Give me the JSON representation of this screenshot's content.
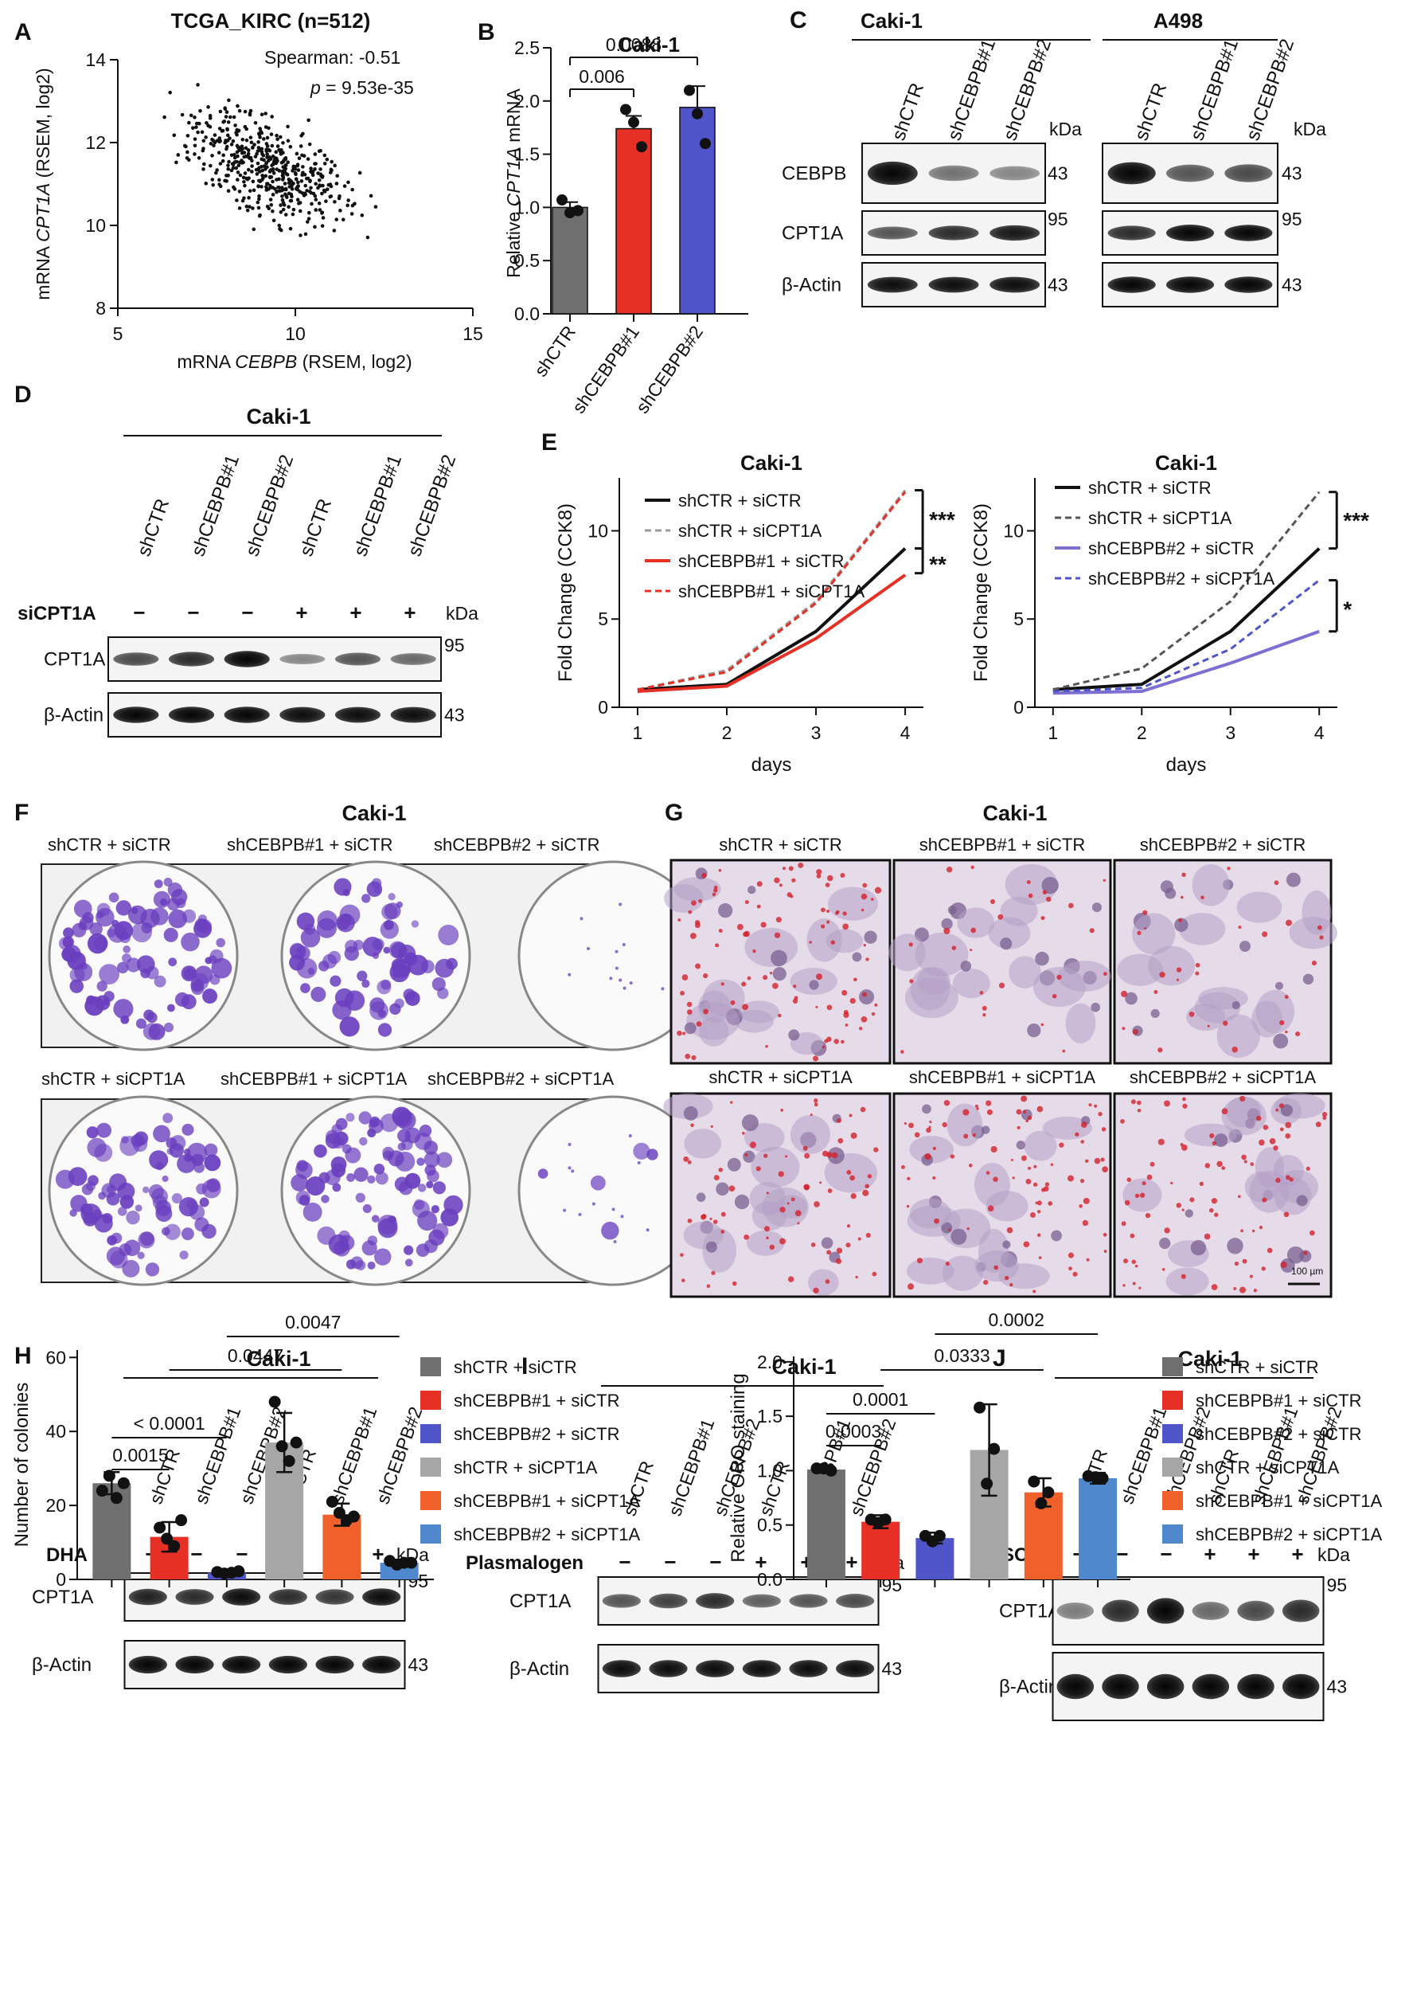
{
  "labels": [
    "A",
    "B",
    "C",
    "D",
    "E",
    "F",
    "G",
    "H",
    "I",
    "J"
  ],
  "panelA": {
    "title": "TCGA_KIRC (n=512)",
    "stat1": "Spearman: -0.51",
    "stat2_p": "p",
    "stat2_rest": " = 9.53e-35",
    "ylabel_pre": "mRNA ",
    "ylabel_gene": "CPT1A",
    "ylabel_post": " (RSEM, log2)",
    "xlabel_pre": "mRNA ",
    "xlabel_gene": "CEBPB",
    "xlabel_post": " (RSEM, log2)",
    "xticks": [
      "5",
      "10",
      "15"
    ],
    "yticks": [
      "8",
      "10",
      "12",
      "14"
    ]
  },
  "panelB": {
    "title": "Caki-1",
    "ylabel_pre": "Relative ",
    "ylabel_gene": "CPT1A",
    "ylabel_post": " mRNA",
    "yticks": [
      "0.0",
      "0.5",
      "1.0",
      "1.5",
      "2.0",
      "2.5"
    ],
    "categories": [
      "shCTR",
      "shCEBPB#1",
      "shCEBPB#2"
    ],
    "p1": "0.006",
    "p2": "0.0088"
  },
  "panelC": {
    "cell1": "Caki-1",
    "cell2": "A498",
    "lanes": [
      "shCTR",
      "shCEBPB#1",
      "shCEBPB#2"
    ],
    "kda": "kDa",
    "rows": [
      "CEBPB",
      "CPT1A",
      "β-Actin"
    ],
    "markers": [
      "43",
      "95",
      "43"
    ]
  },
  "panelD": {
    "cell": "Caki-1",
    "lanes": [
      "shCTR",
      "shCEBPB#1",
      "shCEBPB#2",
      "shCTR",
      "shCEBPB#1",
      "shCEBPB#2"
    ],
    "treat": "siCPT1A",
    "signs": [
      "−",
      "−",
      "−",
      "+",
      "+",
      "+"
    ],
    "kda": "kDa",
    "rows": [
      "CPT1A",
      "β-Actin"
    ],
    "markers": [
      "95",
      "43"
    ]
  },
  "panelE": {
    "ylabel": "Fold Change (CCK8)",
    "xlabel": "days",
    "xticks": [
      "1",
      "2",
      "3",
      "4"
    ],
    "yticks": [
      "0",
      "5",
      "10"
    ],
    "left": {
      "title": "Caki-1",
      "legend": [
        "shCTR + siCTR",
        "shCTR + siCPT1A",
        "shCEBPB#1 + siCTR",
        "shCEBPB#1 + siCPT1A"
      ],
      "sig1": "***",
      "sig2": "**"
    },
    "right": {
      "title": "Caki-1",
      "legend": [
        "shCTR + siCTR",
        "shCTR + siCPT1A",
        "shCEBPB#2 + siCTR",
        "shCEBPB#2 + siCPT1A"
      ],
      "sig1": "***",
      "sig2": "*"
    }
  },
  "panelF": {
    "cell": "Caki-1",
    "top": [
      "shCTR + siCTR",
      "shCEBPB#1 + siCTR",
      "shCEBPB#2 + siCTR"
    ],
    "bottom": [
      "shCTR + siCPT1A",
      "shCEBPB#1 + siCPT1A",
      "shCEBPB#2 + siCPT1A"
    ],
    "ylabel": "Number of colonies",
    "yticks": [
      "0",
      "20",
      "40",
      "60"
    ],
    "p": [
      "0.0015",
      "< 0.0001",
      "0.0447",
      "0.0047"
    ],
    "legend": [
      "shCTR + siCTR",
      "shCEBPB#1 + siCTR",
      "shCEBPB#2 + siCTR",
      "shCTR + siCPT1A",
      "shCEBPB#1 + siCPT1A",
      "shCEBPB#2 + siCPT1A"
    ]
  },
  "panelG": {
    "cell": "Caki-1",
    "top": [
      "shCTR + siCTR",
      "shCEBPB#1 + siCTR",
      "shCEBPB#2 + siCTR"
    ],
    "bottom": [
      "shCTR + siCPT1A",
      "shCEBPB#1 + siCPT1A",
      "shCEBPB#2 + siCPT1A"
    ],
    "scale": "100 µm",
    "ylabel": "Relative ORO staining",
    "yticks": [
      "0.0",
      "0.5",
      "1.0",
      "1.5",
      "2.0"
    ],
    "p": [
      "0.0003",
      "0.0001",
      "0.0333",
      "0.0002"
    ],
    "legend": [
      "shCTR + siCTR",
      "shCEBPB#1 + siCTR",
      "shCEBPB#2 + siCTR",
      "shCTR + siCPT1A",
      "shCEBPB#1 + siCPT1A",
      "shCEBPB#2 + siCPT1A"
    ]
  },
  "panelH": {
    "cell": "Caki-1",
    "lanes": [
      "shCTR",
      "shCEBPB#1",
      "shCEBPB#2",
      "shCTR",
      "shCEBPB#1",
      "shCEBPB#2"
    ],
    "treat": "DHA",
    "signs": [
      "−",
      "−",
      "−",
      "+",
      "+",
      "+"
    ],
    "kda": "kDa",
    "rows": [
      "CPT1A",
      "β-Actin"
    ],
    "markers": [
      "95",
      "43"
    ]
  },
  "panelI": {
    "cell": "Caki-1",
    "lanes": [
      "shCTR",
      "shCEBPB#1",
      "shCEBPB#2",
      "shCTR",
      "shCEBPB#1",
      "shCEBPB#2"
    ],
    "treat": "Plasmalogen",
    "signs": [
      "−",
      "−",
      "−",
      "+",
      "+",
      "+"
    ],
    "kda": "kDa",
    "rows": [
      "CPT1A",
      "β-Actin"
    ],
    "markers": [
      "95",
      "43"
    ]
  },
  "panelJ": {
    "cell": "Caki-1",
    "lanes": [
      "shCTR",
      "shCEBPB#1",
      "shCEBPB#2",
      "shCTR",
      "shCEBPB#1",
      "shCEBPB#2"
    ],
    "treat": "SC79",
    "signs": [
      "−",
      "−",
      "−",
      "+",
      "+",
      "+"
    ],
    "kda": "kDa",
    "rows": [
      "CPT1A",
      "β-Actin"
    ],
    "markers": [
      "95",
      "43"
    ]
  },
  "colors": {
    "gray_dark": "#6f6f6f",
    "red": "#e63025",
    "blue": "#4f55c8",
    "gray_light": "#a6a6a6",
    "orange": "#f0602b",
    "lightblue": "#4f88cc",
    "purple": "#7d6fd1"
  },
  "chart_data": [
    {
      "type": "scatter",
      "title": "TCGA_KIRC (n=512)",
      "xlabel": "mRNA CEBPB (RSEM, log2)",
      "ylabel": "mRNA CPT1A (RSEM, log2)",
      "xlim": [
        5,
        15
      ],
      "ylim": [
        8,
        14
      ],
      "note_n": 512
    },
    {
      "type": "bar",
      "title": "Caki-1",
      "ylabel": "Relative CPT1A mRNA",
      "categories": [
        "shCTR",
        "shCEBPB#1",
        "shCEBPB#2"
      ],
      "values": [
        1.0,
        1.74,
        1.94
      ],
      "errors": [
        0.05,
        0.12,
        0.2
      ],
      "points": [
        [
          1.07,
          0.95,
          0.97
        ],
        [
          1.92,
          1.8,
          1.57
        ],
        [
          2.1,
          1.88,
          1.6
        ]
      ],
      "ylim": [
        0,
        2.5
      ]
    },
    {
      "type": "line",
      "title": "Caki-1",
      "xlabel": "days",
      "ylabel": "Fold Change (CCK8)",
      "x": [
        1,
        2,
        3,
        4
      ],
      "series": [
        {
          "name": "shCTR + siCTR",
          "values": [
            1.0,
            1.3,
            4.3,
            9.0
          ]
        },
        {
          "name": "shCTR + siCPT1A",
          "values": [
            1.0,
            2.1,
            6.0,
            12.3
          ]
        },
        {
          "name": "shCEBPB#1 + siCTR",
          "values": [
            0.9,
            1.2,
            3.9,
            7.5
          ]
        },
        {
          "name": "shCEBPB#1 + siCPT1A",
          "values": [
            1.0,
            2.0,
            5.9,
            12.2
          ]
        }
      ]
    },
    {
      "type": "line",
      "title": "Caki-1",
      "xlabel": "days",
      "ylabel": "Fold Change (CCK8)",
      "x": [
        1,
        2,
        3,
        4
      ],
      "series": [
        {
          "name": "shCTR + siCTR",
          "values": [
            1.0,
            1.3,
            4.3,
            9.0
          ]
        },
        {
          "name": "shCTR + siCPT1A",
          "values": [
            1.0,
            2.2,
            6.0,
            12.2
          ]
        },
        {
          "name": "shCEBPB#2 + siCTR",
          "values": [
            0.8,
            0.9,
            2.5,
            4.3
          ]
        },
        {
          "name": "shCEBPB#2 + siCPT1A",
          "values": [
            0.9,
            1.1,
            3.3,
            7.2
          ]
        }
      ]
    },
    {
      "type": "bar",
      "ylabel": "Number of colonies",
      "categories": [
        "shCTR + siCTR",
        "shCEBPB#1 + siCTR",
        "shCEBPB#2 + siCTR",
        "shCTR + siCPT1A",
        "shCEBPB#1 + siCPT1A",
        "shCEBPB#2 + siCPT1A"
      ],
      "values": [
        26,
        11.5,
        1.8,
        37,
        17.5,
        4.5
      ],
      "errors": [
        3,
        4,
        0.5,
        8,
        3,
        0.8
      ],
      "ylim": [
        0,
        60
      ]
    },
    {
      "type": "bar",
      "ylabel": "Relative ORO staining",
      "categories": [
        "shCTR + siCTR",
        "shCEBPB#1 + siCTR",
        "shCEBPB#2 + siCTR",
        "shCTR + siCPT1A",
        "shCEBPB#1 + siCPT1A",
        "shCEBPB#2 + siCPT1A"
      ],
      "values": [
        1.01,
        0.53,
        0.38,
        1.19,
        0.8,
        0.93
      ],
      "errors": [
        0.03,
        0.06,
        0.05,
        0.42,
        0.13,
        0.05
      ],
      "ylim": [
        0,
        2.0
      ]
    }
  ]
}
